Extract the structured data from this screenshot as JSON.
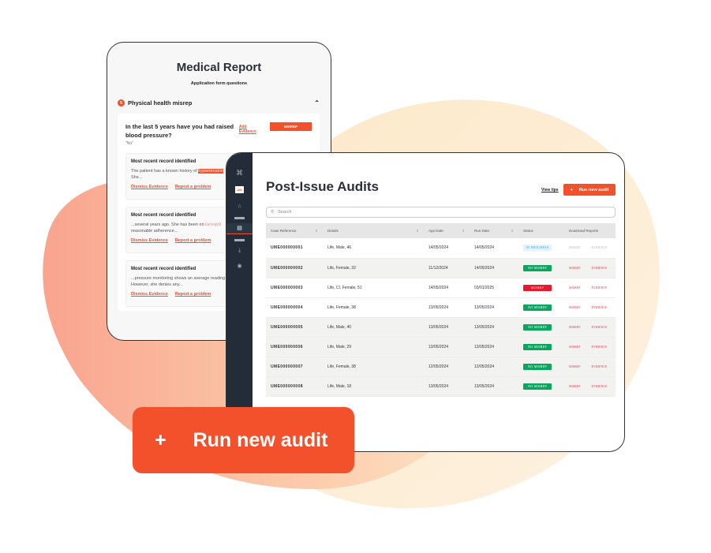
{
  "colors": {
    "accent": "#f2512b",
    "sidebar": "#232d3a",
    "no_misrep": "#0aa55f",
    "misrep": "#e8192c",
    "in_progress": "#e3f3fd"
  },
  "medical": {
    "title": "Medical Report",
    "subtitle": "Application form questions",
    "section": {
      "number": "5",
      "label": "Physical health misrep",
      "icon": "chevron-up-icon"
    },
    "question": "In the last 5 years have you had raised blood pressure?",
    "answer": "\"No\"",
    "add_evidence": "Add Evidence",
    "misrep_button": "MISREP",
    "records": [
      {
        "title": "Most recent record identified",
        "pre": "The patient has a known history of ",
        "highlight": "hypertension",
        "post": "She...",
        "dismiss": "Dismiss Evidence",
        "report": "Report a problem"
      },
      {
        "title": "Most recent record identified",
        "pre": "...several years ago. She has been on ",
        "highlight": "lisinopril",
        "post": "reasonable adherence...",
        "dismiss": "Dismiss Evidence",
        "report": "Report a problem"
      },
      {
        "title": "Most recent record identified",
        "pre": "...pressure monitoring shows an average reading",
        "highlight": "",
        "post": "However, she denies any...",
        "dismiss": "Dismiss Evidence",
        "report": "Report a problem"
      }
    ]
  },
  "audits": {
    "logo": "UM",
    "title": "Post-Issue Audits",
    "view_tips": "View tips",
    "run_button": "Run new audit",
    "search_placeholder": "Search",
    "columns": [
      "Case Reference",
      "Details",
      "App Date",
      "Run Date",
      "Status",
      "Download Reports"
    ],
    "rows": [
      {
        "ref": "UME000000001",
        "details": "Life, Male, 46",
        "app": "14/05/2024",
        "run": "14/05/2024",
        "status": "IN PROGRESS",
        "a": "MISREP",
        "b": "EVIDENCE"
      },
      {
        "ref": "UME000000002",
        "details": "Life, Female, 32",
        "app": "11/12/2024",
        "run": "14/05/2024",
        "status": "NO MISREP",
        "a": "MISREP",
        "b": "EVIDENCE"
      },
      {
        "ref": "UME000000003",
        "details": "Life, CI, Female, 51",
        "app": "14/05/2024",
        "run": "03/01/2025",
        "status": "MISREP",
        "a": "MISREP",
        "b": "EVIDENCE"
      },
      {
        "ref": "UME000000004",
        "details": "Life, Female, 38",
        "app": "13/05/2024",
        "run": "13/05/2024",
        "status": "NO MISREP",
        "a": "MISREP",
        "b": "EVIDENCE"
      },
      {
        "ref": "UME000000005",
        "details": "Life, Male, 40",
        "app": "13/05/2024",
        "run": "13/05/2024",
        "status": "NO MISREP",
        "a": "MISREP",
        "b": "EVIDENCE"
      },
      {
        "ref": "UME000000006",
        "details": "Life, Male, 29",
        "app": "13/05/2024",
        "run": "13/05/2024",
        "status": "NO MISREP",
        "a": "MISREP",
        "b": "EVIDENCE"
      },
      {
        "ref": "UME000000007",
        "details": "Life, Female, 38",
        "app": "12/05/2024",
        "run": "12/05/2024",
        "status": "NO MISREP",
        "a": "MISREP",
        "b": "EVIDENCE"
      },
      {
        "ref": "UME000000008",
        "details": "Life, Male, 18",
        "app": "13/05/2024",
        "run": "13/05/2024",
        "status": "NO MISREP",
        "a": "MISREP",
        "b": "EVIDENCE"
      }
    ]
  },
  "cta": {
    "plus": "+",
    "label": "Run new audit"
  }
}
